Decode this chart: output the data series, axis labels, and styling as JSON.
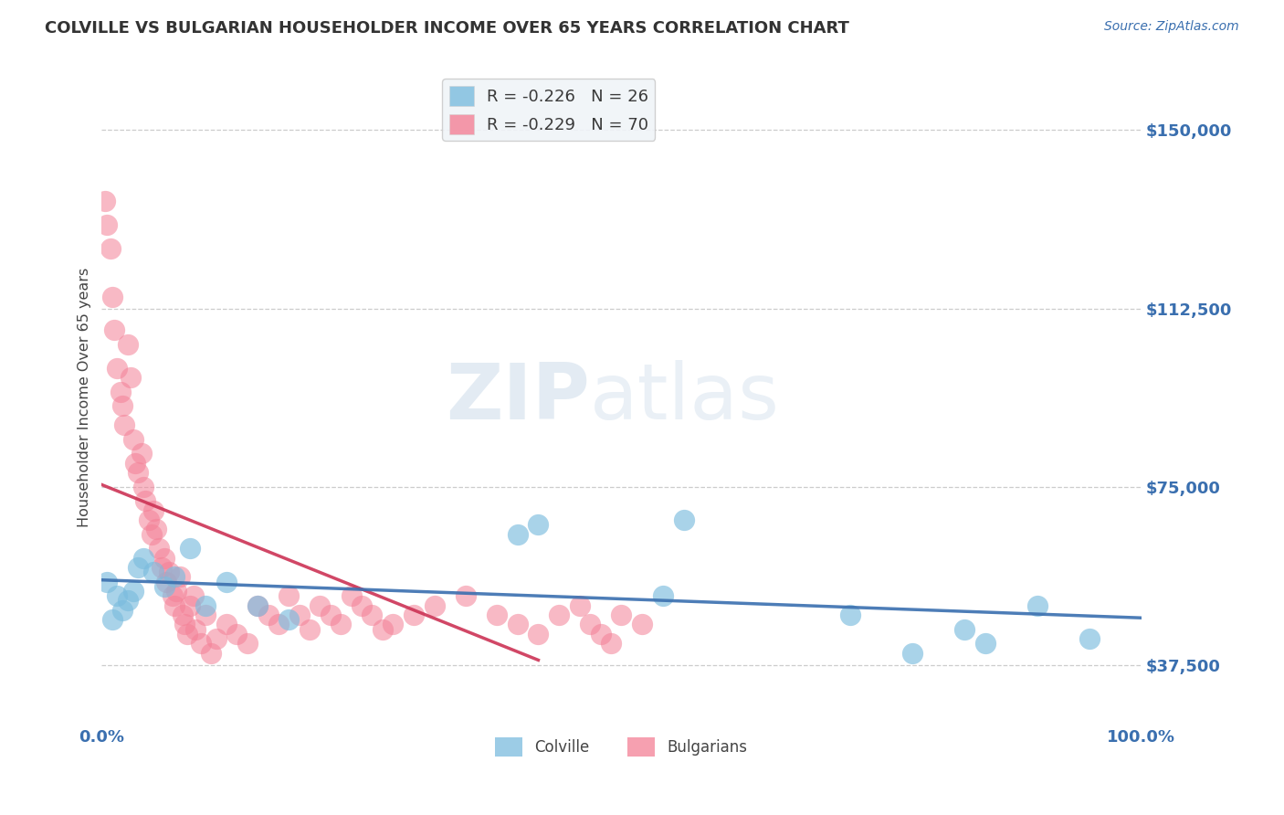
{
  "title": "COLVILLE VS BULGARIAN HOUSEHOLDER INCOME OVER 65 YEARS CORRELATION CHART",
  "source": "Source: ZipAtlas.com",
  "ylabel": "Householder Income Over 65 years",
  "yticks": [
    37500,
    75000,
    112500,
    150000
  ],
  "ytick_labels": [
    "$37,500",
    "$75,000",
    "$112,500",
    "$150,000"
  ],
  "watermark_zip": "ZIP",
  "watermark_atlas": "atlas",
  "legend_title_colville": "Colville",
  "legend_title_bulgarian": "Bulgarians",
  "colville_color": "#7bbcde",
  "bulgarian_color": "#f48096",
  "colville_line_color": "#3a6faf",
  "bulgarian_line_color": "#cc3355",
  "colville_points_x": [
    0.5,
    1.0,
    1.5,
    2.0,
    2.5,
    3.0,
    3.5,
    4.0,
    5.0,
    6.0,
    7.0,
    8.5,
    10.0,
    12.0,
    15.0,
    18.0,
    40.0,
    42.0,
    54.0,
    56.0,
    72.0,
    78.0,
    83.0,
    85.0,
    90.0,
    95.0
  ],
  "colville_points_y": [
    55000,
    47000,
    52000,
    49000,
    51000,
    53000,
    58000,
    60000,
    57000,
    54000,
    56000,
    62000,
    50000,
    55000,
    50000,
    47000,
    65000,
    67000,
    52000,
    68000,
    48000,
    40000,
    45000,
    42000,
    50000,
    43000
  ],
  "bulgarian_points_x": [
    0.3,
    0.5,
    0.8,
    1.0,
    1.2,
    1.5,
    1.8,
    2.0,
    2.2,
    2.5,
    2.8,
    3.0,
    3.2,
    3.5,
    3.8,
    4.0,
    4.2,
    4.5,
    4.8,
    5.0,
    5.2,
    5.5,
    5.8,
    6.0,
    6.2,
    6.5,
    6.8,
    7.0,
    7.2,
    7.5,
    7.8,
    8.0,
    8.2,
    8.5,
    8.8,
    9.0,
    9.5,
    10.0,
    10.5,
    11.0,
    12.0,
    13.0,
    14.0,
    15.0,
    16.0,
    17.0,
    18.0,
    19.0,
    20.0,
    21.0,
    22.0,
    23.0,
    24.0,
    25.0,
    26.0,
    27.0,
    28.0,
    30.0,
    32.0,
    35.0,
    38.0,
    40.0,
    42.0,
    44.0,
    46.0,
    47.0,
    48.0,
    49.0,
    50.0,
    52.0
  ],
  "bulgarian_points_y": [
    135000,
    130000,
    125000,
    115000,
    108000,
    100000,
    95000,
    92000,
    88000,
    105000,
    98000,
    85000,
    80000,
    78000,
    82000,
    75000,
    72000,
    68000,
    65000,
    70000,
    66000,
    62000,
    58000,
    60000,
    55000,
    57000,
    52000,
    50000,
    53000,
    56000,
    48000,
    46000,
    44000,
    50000,
    52000,
    45000,
    42000,
    48000,
    40000,
    43000,
    46000,
    44000,
    42000,
    50000,
    48000,
    46000,
    52000,
    48000,
    45000,
    50000,
    48000,
    46000,
    52000,
    50000,
    48000,
    45000,
    46000,
    48000,
    50000,
    52000,
    48000,
    46000,
    44000,
    48000,
    50000,
    46000,
    44000,
    42000,
    48000,
    46000
  ],
  "xmin": 0.0,
  "xmax": 100.0,
  "ymin": 25000,
  "ymax": 162500,
  "grid_color": "#cccccc",
  "background_color": "#ffffff"
}
